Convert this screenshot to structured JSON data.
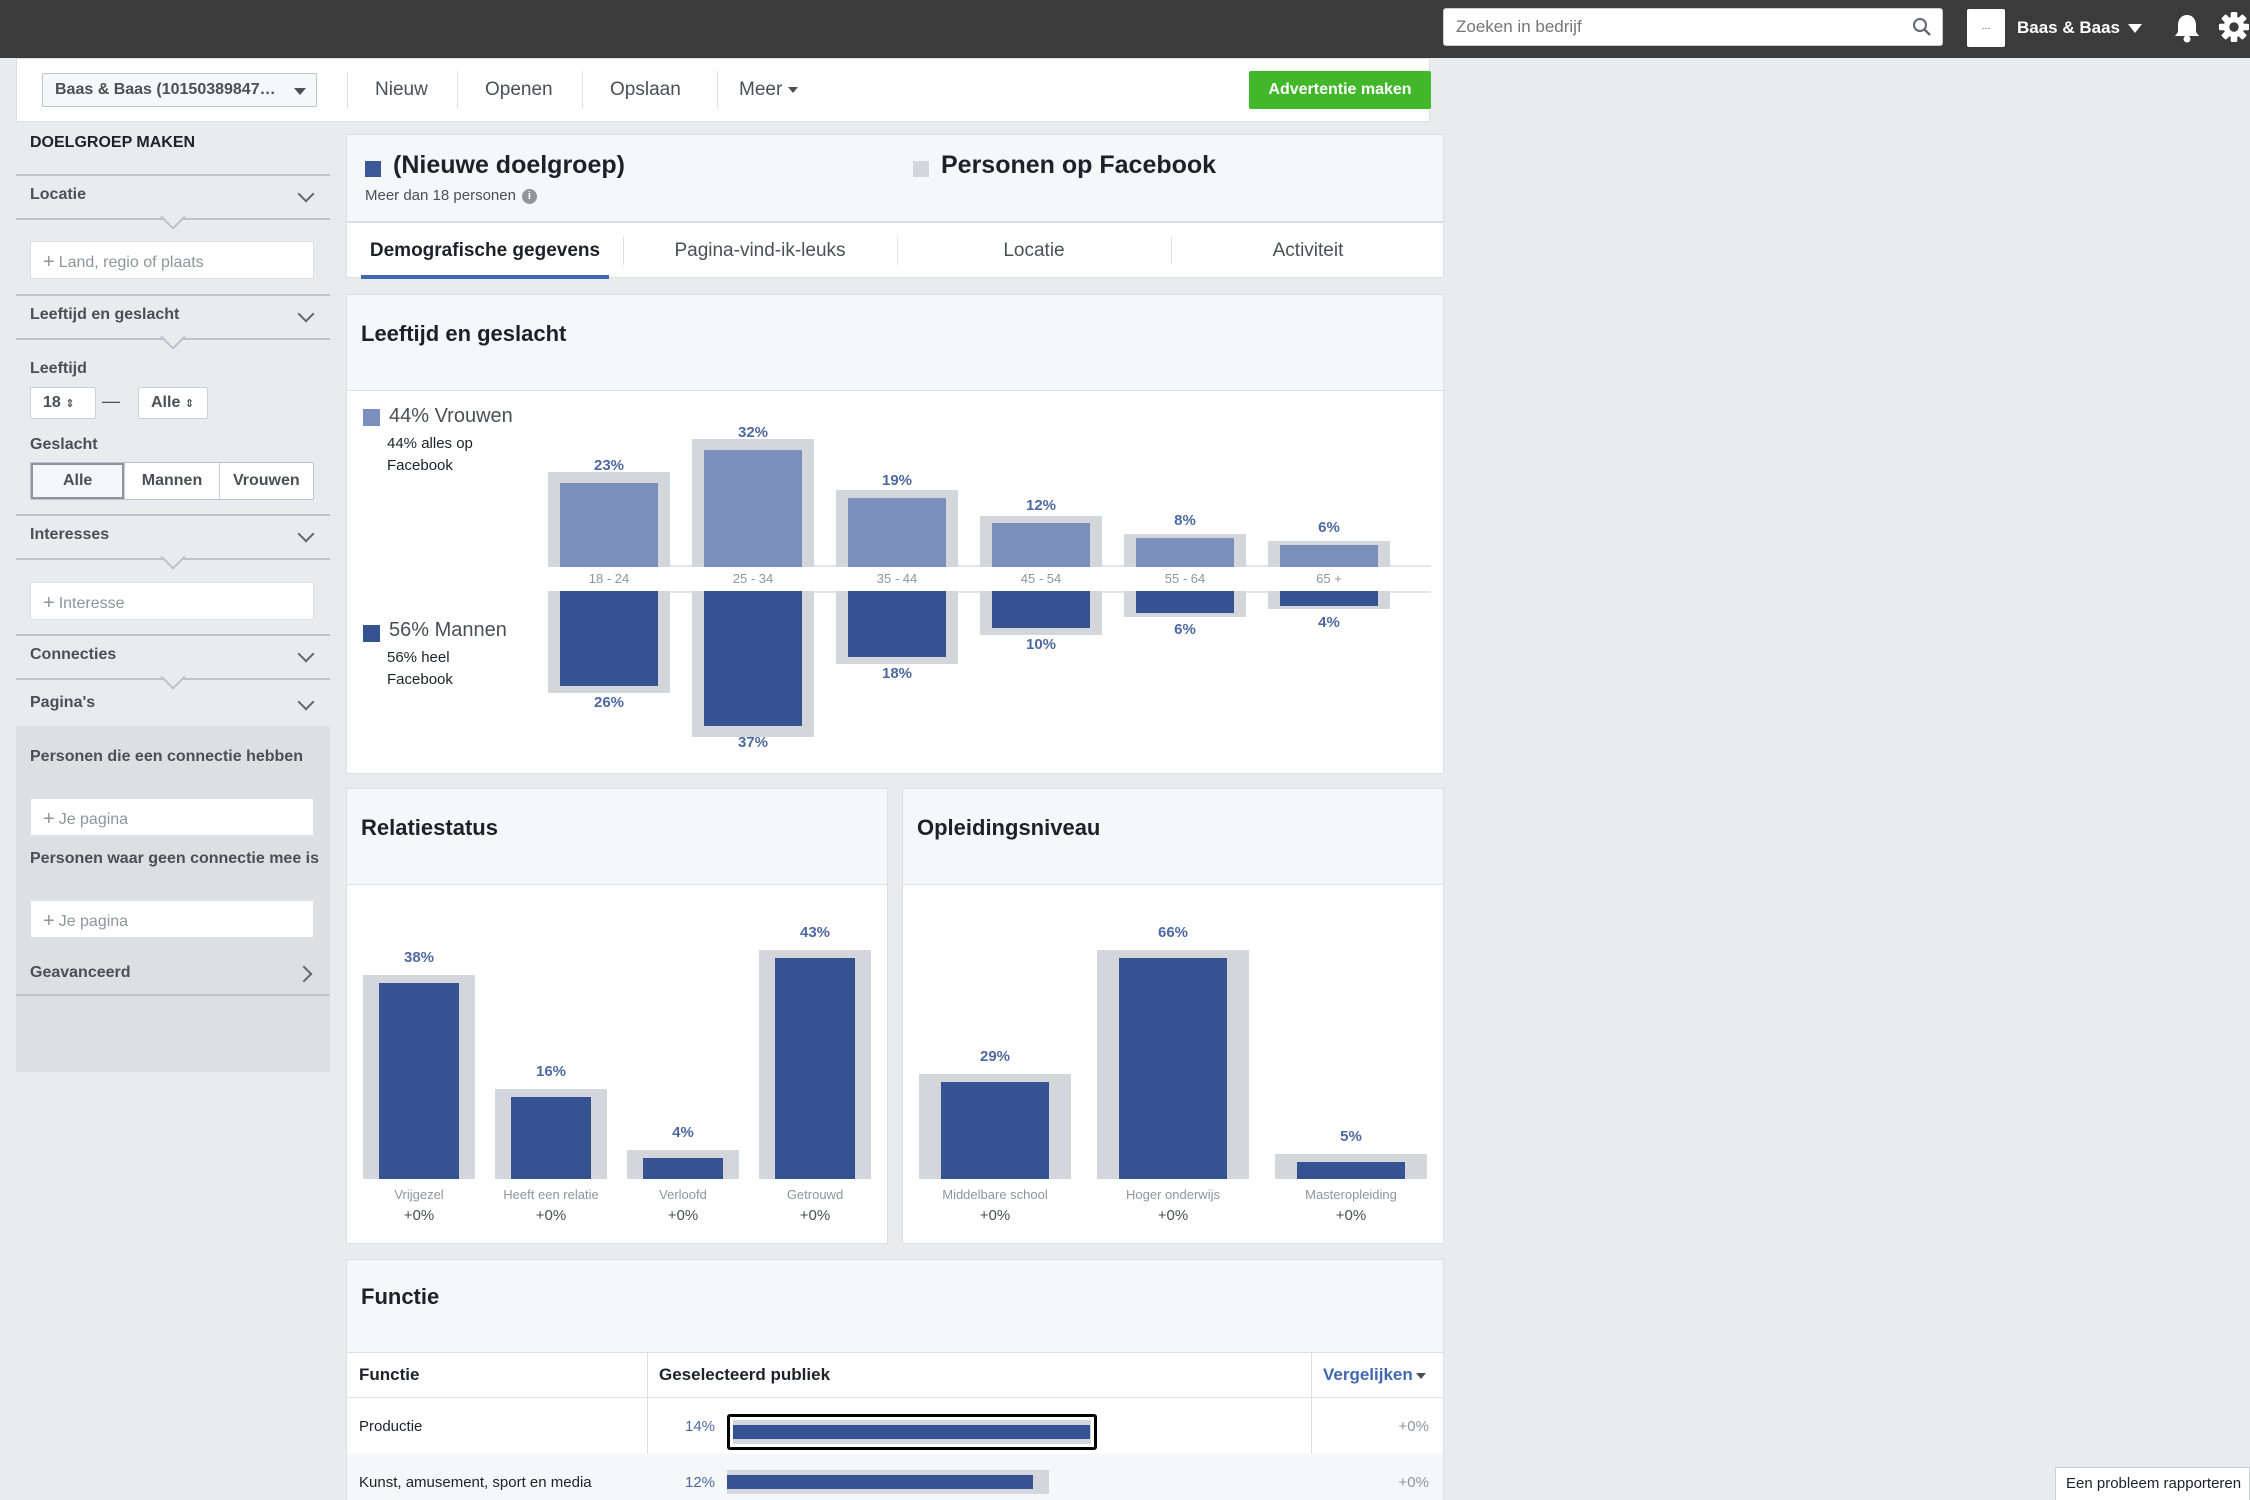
{
  "topbar": {
    "search_placeholder": "Zoeken in bedrijf",
    "account_name": "Baas & Baas",
    "account_logo_text": "···"
  },
  "toolbar": {
    "account_select": "Baas & Baas (10150389847…",
    "new": "Nieuw",
    "open": "Openen",
    "save": "Opslaan",
    "more": "Meer",
    "create_ad": "Advertentie maken"
  },
  "sidebar": {
    "title": "DOELGROEP MAKEN",
    "location": {
      "label": "Locatie",
      "placeholder": "Land, regio of plaats"
    },
    "age_gender": {
      "label": "Leeftijd en geslacht",
      "age_label": "Leeftijd",
      "age_min": "18",
      "age_dash": "—",
      "age_max": "Alle",
      "gender_label": "Geslacht",
      "gender_options": [
        "Alle",
        "Mannen",
        "Vrouwen"
      ]
    },
    "interests": {
      "label": "Interesses",
      "placeholder": "Interesse"
    },
    "connections": {
      "label": "Connecties"
    },
    "pages": {
      "label": "Pagina's",
      "connected_label": "Personen die een connectie hebben",
      "connected_placeholder": "Je pagina",
      "not_connected_label": "Personen waar geen connectie mee is",
      "not_connected_placeholder": "Je pagina"
    },
    "advanced": {
      "label": "Geavanceerd"
    }
  },
  "audience": {
    "name": "(Nieuwe doelgroep)",
    "size": "Meer dan 18 personen",
    "compare_name": "Personen op Facebook",
    "color_selected": "#3b5998",
    "color_compare": "#d4d6db"
  },
  "tabs": [
    "Demografische gegevens",
    "Pagina-vind-ik-leuks",
    "Locatie",
    "Activiteit"
  ],
  "age_gender_panel": {
    "title": "Leeftijd en geslacht",
    "women_legend": "44% Vrouwen",
    "women_sub": "44% alles op Facebook",
    "men_legend": "56% Mannen",
    "men_sub": "56% heel Facebook"
  },
  "relationship_panel": {
    "title": "Relatiestatus"
  },
  "education_panel": {
    "title": "Opleidingsniveau"
  },
  "function_panel": {
    "title": "Functie",
    "col_function": "Functie",
    "col_audience": "Geselecteerd publiek",
    "compare": "Vergelijken",
    "rows": [
      {
        "label": "Productie",
        "pct": "14%",
        "delta": "+0%",
        "value": 14
      },
      {
        "label": "Kunst, amusement, sport en media",
        "pct": "12%",
        "delta": "+0%",
        "value": 12
      }
    ]
  },
  "report_problem": "Een probleem rapporteren",
  "chart_data": [
    {
      "type": "bar",
      "title": "Leeftijd en geslacht",
      "categories": [
        "18 - 24",
        "25 - 34",
        "35 - 44",
        "45 - 54",
        "55 - 64",
        "65 +"
      ],
      "series": [
        {
          "name": "44% Vrouwen",
          "values": [
            23,
            32,
            19,
            12,
            8,
            6
          ],
          "labels": [
            "23%",
            "32%",
            "19%",
            "12%",
            "8%",
            "6%"
          ],
          "color": "#7b8fbd"
        },
        {
          "name": "56% Mannen",
          "values": [
            26,
            37,
            18,
            10,
            6,
            4
          ],
          "labels": [
            "26%",
            "37%",
            "18%",
            "10%",
            "6%",
            "4%"
          ],
          "color": "#365391"
        }
      ],
      "comparison_women": [
        26,
        35,
        21,
        14,
        9,
        7
      ],
      "comparison_men": [
        28,
        40,
        20,
        12,
        7,
        5
      ]
    },
    {
      "type": "bar",
      "title": "Relatiestatus",
      "categories": [
        "Vrijgezel",
        "Heeft een relatie",
        "Verloofd",
        "Getrouwd"
      ],
      "values": [
        38,
        16,
        4,
        43
      ],
      "labels": [
        "38%",
        "16%",
        "4%",
        "43%"
      ],
      "deltas": [
        "+0%",
        "+0%",
        "+0%",
        "+0%"
      ],
      "comparison": [
        38,
        16,
        4,
        43
      ]
    },
    {
      "type": "bar",
      "title": "Opleidingsniveau",
      "categories": [
        "Middelbare school",
        "Hoger onderwijs",
        "Masteropleiding"
      ],
      "values": [
        29,
        66,
        5
      ],
      "labels": [
        "29%",
        "66%",
        "5%"
      ],
      "deltas": [
        "+0%",
        "+0%",
        "+0%"
      ],
      "comparison": [
        29,
        66,
        5
      ]
    }
  ]
}
